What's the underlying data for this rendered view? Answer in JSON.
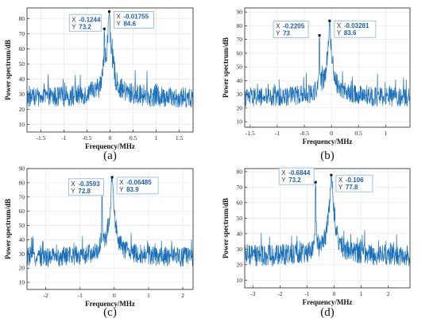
{
  "colors": {
    "trace": "#1b6fb8",
    "tip_border": "#8ab4d8",
    "tip_bg": "#ffffff",
    "grid": "#e3e3e3"
  },
  "chart_data": [
    {
      "type": "line",
      "caption": "(a)",
      "xlabel": "Frequency/MHz",
      "ylabel": "Power spectrum/dB",
      "xlim": [
        -1.8,
        1.8
      ],
      "ylim": [
        5,
        87
      ],
      "xticks": [
        -1.5,
        -1,
        -0.5,
        0,
        0.5,
        1,
        1.5
      ],
      "yticks": [
        10,
        20,
        30,
        40,
        50,
        60,
        70,
        80
      ],
      "grid": true,
      "noise_floor": 27,
      "peaks": [
        {
          "x": -0.1244,
          "y": 73.2
        },
        {
          "x": -0.01755,
          "y": 84.6
        }
      ],
      "annotations": [
        {
          "x_label": "X",
          "x_value": "-0.1244",
          "y_label": "Y",
          "y_value": "73.2",
          "side": "left"
        },
        {
          "x_label": "X",
          "x_value": "-0.01755",
          "y_label": "Y",
          "y_value": "84.6",
          "side": "right"
        }
      ]
    },
    {
      "type": "line",
      "caption": "(b)",
      "xlabel": "Frequency/MHz",
      "ylabel": "Power spectrum/dB",
      "xlim": [
        -1.6,
        1.45
      ],
      "ylim": [
        6,
        93
      ],
      "xticks": [
        -1.5,
        -1,
        -0.5,
        0,
        0.5,
        1
      ],
      "yticks": [
        10,
        20,
        30,
        40,
        50,
        60,
        70,
        80,
        90
      ],
      "grid": true,
      "noise_floor": 27,
      "peaks": [
        {
          "x": -0.2205,
          "y": 73
        },
        {
          "x": -0.03281,
          "y": 83.6
        }
      ],
      "annotations": [
        {
          "x_label": "X",
          "x_value": "-0.2205",
          "y_label": "Y",
          "y_value": "73",
          "side": "left"
        },
        {
          "x_label": "X",
          "x_value": "-0.03281",
          "y_label": "Y",
          "y_value": "83.6",
          "side": "right"
        }
      ]
    },
    {
      "type": "line",
      "caption": "(c)",
      "xlabel": "Frequency/MHz",
      "ylabel": "Power spectrum/dB",
      "xlim": [
        -2.55,
        2.3
      ],
      "ylim": [
        5,
        90
      ],
      "xticks": [
        -2,
        -1,
        0,
        1,
        2
      ],
      "yticks": [
        10,
        20,
        30,
        40,
        50,
        60,
        70,
        80,
        90
      ],
      "grid": true,
      "noise_floor": 27,
      "peaks": [
        {
          "x": -0.3593,
          "y": 72.8
        },
        {
          "x": -0.06485,
          "y": 83.9
        }
      ],
      "annotations": [
        {
          "x_label": "X",
          "x_value": "-0.3593",
          "y_label": "Y",
          "y_value": "72.8",
          "side": "left"
        },
        {
          "x_label": "X",
          "x_value": "-0.06485",
          "y_label": "Y",
          "y_value": "83.9",
          "side": "right"
        }
      ]
    },
    {
      "type": "line",
      "caption": "(d)",
      "xlabel": "Frequency/MHz",
      "ylabel": "Power spectrum/dB",
      "xlim": [
        -3.3,
        2.8
      ],
      "ylim": [
        5,
        82
      ],
      "xticks": [
        -3,
        -2,
        -1,
        0,
        1,
        2
      ],
      "yticks": [
        10,
        20,
        30,
        40,
        50,
        60,
        70,
        80
      ],
      "grid": true,
      "noise_floor": 25,
      "peaks": [
        {
          "x": -0.6844,
          "y": 73.2
        },
        {
          "x": -0.106,
          "y": 77.8
        }
      ],
      "annotations": [
        {
          "x_label": "X",
          "x_value": "-0.6844",
          "y_label": "Y",
          "y_value": "73.2",
          "side": "left"
        },
        {
          "x_label": "X",
          "x_value": "-0.106",
          "y_label": "Y",
          "y_value": "77.8",
          "side": "right"
        }
      ]
    }
  ]
}
